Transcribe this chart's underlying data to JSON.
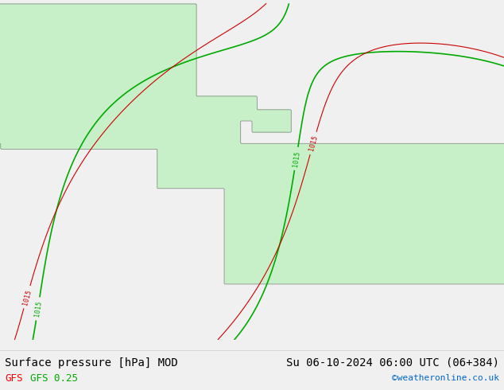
{
  "title_left": "Surface pressure [hPa] MOD",
  "title_right": "Su 06-10-2024 06:00 UTC (06+384)",
  "label_gfs_red": "GFS",
  "label_gfs_green": "GFS 0.25",
  "credit": "©weatheronline.co.uk",
  "bg_color": "#f0f0f0",
  "land_color": "#c8f0c8",
  "ocean_color": "#e8e8e8",
  "contour_color_red": "#cc0000",
  "contour_color_green": "#00aa00",
  "contour_value": 1015,
  "font_size_title": 10,
  "font_size_label": 9,
  "font_size_credit": 8
}
